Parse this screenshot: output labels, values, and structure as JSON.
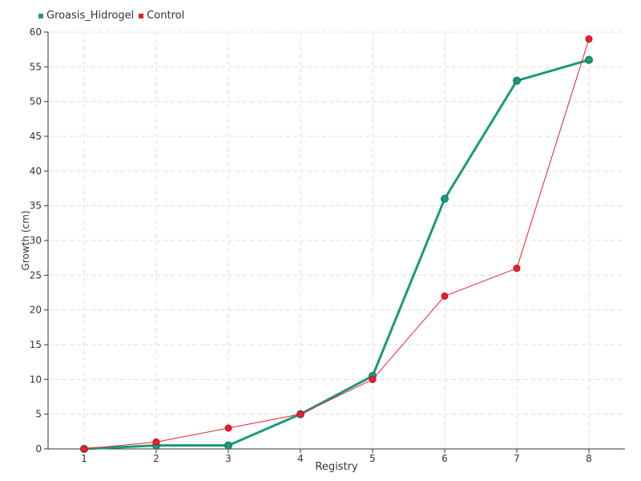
{
  "chart_data": {
    "type": "line",
    "xlabel": "Registry",
    "ylabel": "Growth (cm)",
    "categories": [
      "1",
      "2",
      "3",
      "4",
      "5",
      "6",
      "7",
      "8"
    ],
    "ylim": [
      0,
      60
    ],
    "yticks": [
      "0",
      "5",
      "10",
      "15",
      "20",
      "25",
      "30",
      "35",
      "40",
      "45",
      "50",
      "55",
      "60"
    ],
    "grid": true,
    "legend_position": "top-left",
    "series": [
      {
        "name": "Groasis_Hidrogel",
        "color": "#1a9a7a",
        "values": [
          0,
          0.5,
          0.5,
          5,
          10.5,
          36,
          53,
          56
        ]
      },
      {
        "name": "Control",
        "color": "#e8202d",
        "values": [
          0,
          1,
          3,
          5,
          10,
          22,
          26,
          59
        ]
      }
    ]
  }
}
